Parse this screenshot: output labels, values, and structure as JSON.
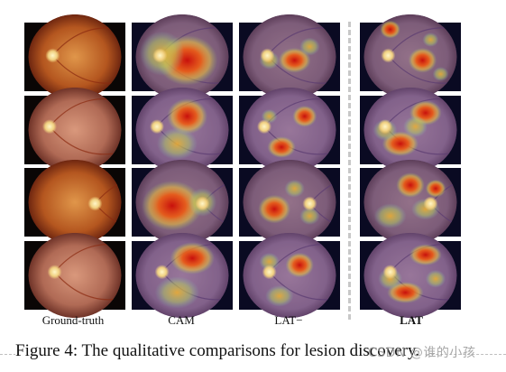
{
  "figure": {
    "columns": [
      "Ground-truth",
      "CAM",
      "LAT−",
      "LAT"
    ],
    "rows": 4,
    "caption": "Figure 4: The qualitative comparisons for lesion discovery.",
    "watermark": "CSDN @谁的小孩"
  },
  "colors": {
    "fundus_center": "#d88a3a",
    "fundus_edge": "#7a2a10",
    "heat_hot": "#d81e10",
    "heat_warm": "#f0a020",
    "heat_cool": "#6c8fd0",
    "background_tile": "#0a0a20",
    "divider": "#c8c8c8"
  }
}
